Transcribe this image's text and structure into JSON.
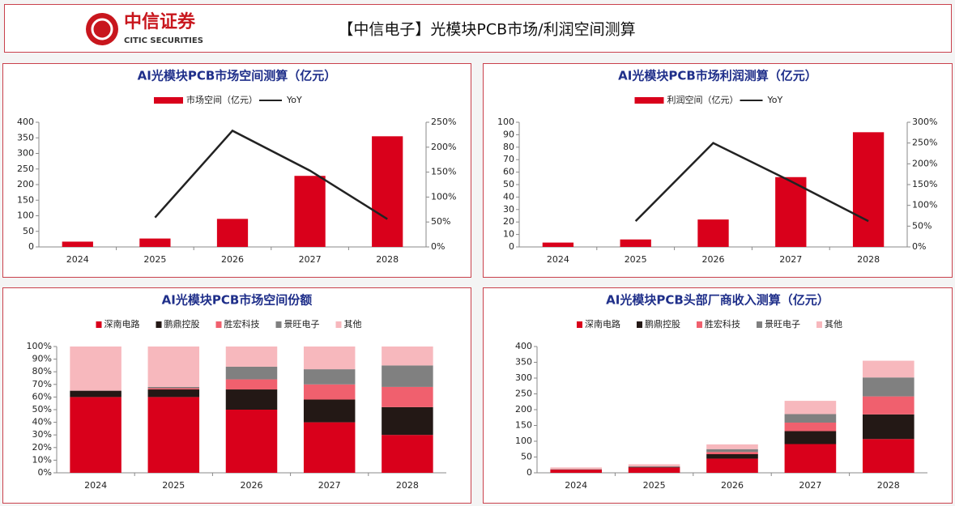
{
  "header": {
    "logo_name": "中信证券",
    "logo_subtitle": "CITIC SECURITIES",
    "title": "【中信电子】光模块PCB市场/利润空间测算"
  },
  "chart_data": [
    {
      "type": "combo",
      "title": "AI光模块PCB市场空间测算（亿元）",
      "categories": [
        "2024",
        "2025",
        "2026",
        "2027",
        "2028"
      ],
      "series": [
        {
          "name": "市场空间（亿元）",
          "type": "bar",
          "color": "#d9001b",
          "values": [
            17,
            27,
            90,
            228,
            355
          ]
        },
        {
          "name": "YoY",
          "type": "line",
          "axis": "y2",
          "color": "#222222",
          "values": [
            null,
            59,
            233,
            153,
            56
          ]
        }
      ],
      "ylim": [
        0,
        400
      ],
      "yticks": [
        0,
        50,
        100,
        150,
        200,
        250,
        300,
        350,
        400
      ],
      "y2lim": [
        0,
        250
      ],
      "y2ticks": [
        {
          "value": 0,
          "label": "0%"
        },
        {
          "value": 50,
          "label": "50%"
        },
        {
          "value": 100,
          "label": "100%"
        },
        {
          "value": 150,
          "label": "150%"
        },
        {
          "value": 200,
          "label": "200%"
        },
        {
          "value": 250,
          "label": "250%"
        }
      ]
    },
    {
      "type": "combo",
      "title": "AI光模块PCB市场利润测算（亿元）",
      "categories": [
        "2024",
        "2025",
        "2026",
        "2027",
        "2028"
      ],
      "series": [
        {
          "name": "利润空间（亿元）",
          "type": "bar",
          "color": "#d9001b",
          "values": [
            3.5,
            6,
            22,
            56,
            92
          ]
        },
        {
          "name": "YoY",
          "type": "line",
          "axis": "y2",
          "color": "#222222",
          "values": [
            null,
            62,
            250,
            158,
            62
          ]
        }
      ],
      "ylim": [
        0,
        100
      ],
      "yticks": [
        0,
        10,
        20,
        30,
        40,
        50,
        60,
        70,
        80,
        90,
        100
      ],
      "y2lim": [
        0,
        300
      ],
      "y2ticks": [
        {
          "value": 0,
          "label": "0%"
        },
        {
          "value": 50,
          "label": "50%"
        },
        {
          "value": 100,
          "label": "100%"
        },
        {
          "value": 150,
          "label": "150%"
        },
        {
          "value": 200,
          "label": "200%"
        },
        {
          "value": 250,
          "label": "250%"
        },
        {
          "value": 300,
          "label": "300%"
        }
      ]
    },
    {
      "type": "stacked_bar",
      "title": "AI光模块PCB市场空间份额",
      "categories": [
        "2024",
        "2025",
        "2026",
        "2027",
        "2028"
      ],
      "series": [
        {
          "name": "深南电路",
          "color": "#d9001b",
          "values": [
            60,
            60,
            50,
            40,
            30
          ]
        },
        {
          "name": "鹏鼎控股",
          "color": "#231815",
          "values": [
            5,
            6,
            16,
            18,
            22
          ]
        },
        {
          "name": "胜宏科技",
          "color": "#f0606e",
          "values": [
            0,
            1,
            8,
            12,
            16
          ]
        },
        {
          "name": "景旺电子",
          "color": "#808080",
          "values": [
            0,
            1,
            10,
            12,
            17
          ]
        },
        {
          "name": "其他",
          "color": "#f7b8bd",
          "values": [
            35,
            32,
            16,
            18,
            15
          ]
        }
      ],
      "ylim": [
        0,
        100
      ],
      "yticks": [
        {
          "value": 0,
          "label": "0%"
        },
        {
          "value": 10,
          "label": "10%"
        },
        {
          "value": 20,
          "label": "20%"
        },
        {
          "value": 30,
          "label": "30%"
        },
        {
          "value": 40,
          "label": "40%"
        },
        {
          "value": 50,
          "label": "50%"
        },
        {
          "value": 60,
          "label": "60%"
        },
        {
          "value": 70,
          "label": "70%"
        },
        {
          "value": 80,
          "label": "80%"
        },
        {
          "value": 90,
          "label": "90%"
        },
        {
          "value": 100,
          "label": "100%"
        }
      ]
    },
    {
      "type": "stacked_bar",
      "title": "AI光模块PCB头部厂商收入测算（亿元）",
      "categories": [
        "2024",
        "2025",
        "2026",
        "2027",
        "2028"
      ],
      "series": [
        {
          "name": "深南电路",
          "color": "#d9001b",
          "values": [
            10,
            17,
            45,
            91,
            107
          ]
        },
        {
          "name": "鹏鼎控股",
          "color": "#231815",
          "values": [
            1,
            2,
            14,
            41,
            78
          ]
        },
        {
          "name": "胜宏科技",
          "color": "#f0606e",
          "values": [
            0,
            0,
            7,
            27,
            57
          ]
        },
        {
          "name": "景旺电子",
          "color": "#808080",
          "values": [
            0,
            1,
            9,
            27,
            60
          ]
        },
        {
          "name": "其他",
          "color": "#f7b8bd",
          "values": [
            6,
            7,
            15,
            42,
            53
          ]
        }
      ],
      "ylim": [
        0,
        400
      ],
      "yticks": [
        0,
        50,
        100,
        150,
        200,
        250,
        300,
        350,
        400
      ]
    }
  ]
}
